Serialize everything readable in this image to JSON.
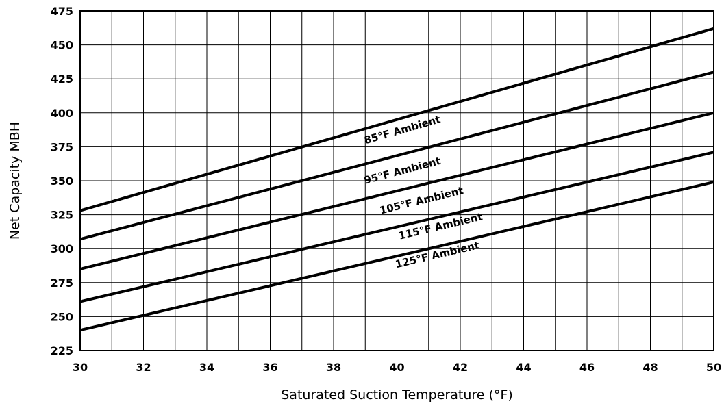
{
  "chart_data": {
    "type": "line",
    "title": "",
    "xlabel": "Saturated Suction Temperature (°F)",
    "ylabel": "Net Capacity MBH",
    "xlim": [
      30,
      50
    ],
    "ylim": [
      225,
      475
    ],
    "x_ticks": [
      30,
      32,
      34,
      36,
      38,
      40,
      42,
      44,
      46,
      48,
      50
    ],
    "y_ticks": [
      225,
      250,
      275,
      300,
      325,
      350,
      375,
      400,
      425,
      450,
      475
    ],
    "grid": true,
    "legend": "none",
    "series": [
      {
        "name": "85°F Ambient",
        "x": [
          30,
          50
        ],
        "y": [
          328,
          462
        ],
        "label_x": 40.2,
        "label_y": 385
      },
      {
        "name": "95°F Ambient",
        "x": [
          30,
          50
        ],
        "y": [
          307,
          430
        ],
        "label_x": 40.2,
        "label_y": 355
      },
      {
        "name": "105°F Ambient",
        "x": [
          30,
          50
        ],
        "y": [
          285,
          400
        ],
        "label_x": 40.8,
        "label_y": 333
      },
      {
        "name": "115°F Ambient",
        "x": [
          30,
          50
        ],
        "y": [
          261,
          371
        ],
        "label_x": 41.4,
        "label_y": 314
      },
      {
        "name": "125°F Ambient",
        "x": [
          30,
          50
        ],
        "y": [
          240,
          349
        ],
        "label_x": 41.3,
        "label_y": 293
      }
    ]
  }
}
